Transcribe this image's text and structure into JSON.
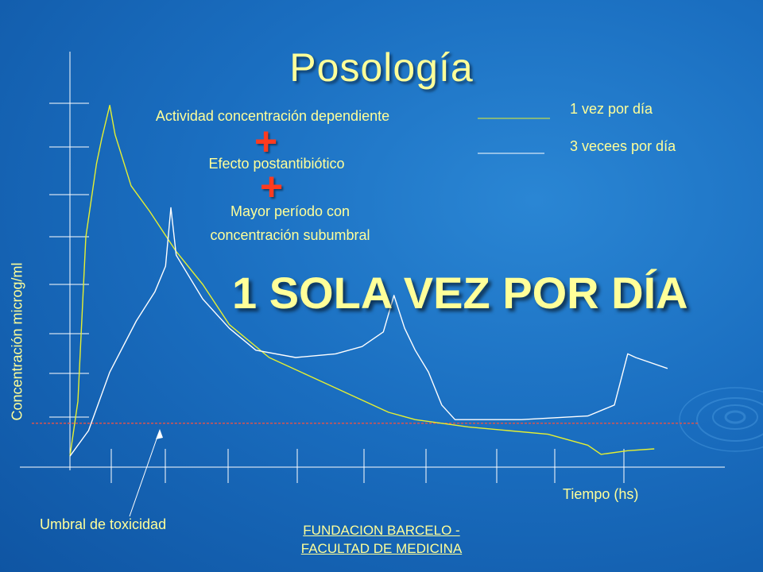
{
  "slide": {
    "title": "Posología",
    "annotations": {
      "actividad": "Actividad concentración dependiente",
      "efecto": "Efecto postantibiótico",
      "mayor_line1": "Mayor período con",
      "mayor_line2": "concentración subumbral",
      "plus": "+"
    },
    "conclusion": "1 SOLA VEZ POR DÍA",
    "footer_line1": "FUNDACION BARCELO -",
    "footer_line2": "FACULTAD DE MEDICINA"
  },
  "colors": {
    "background": "#1a6ec0",
    "text": "#ffff99",
    "plus": "#ff3b1f",
    "threshold": "#d9534f",
    "series_once": "#e6f030",
    "series_three": "#ffffff"
  },
  "chart_data": {
    "type": "line",
    "title": "",
    "xlabel": "Tiempo (hs)",
    "ylabel": "Concentración microg/ml",
    "xlim": [
      0,
      24
    ],
    "ylim": [
      0,
      10
    ],
    "x_ticks_count": 10,
    "y_ticks_count": 9,
    "grid": false,
    "legend": "top-right",
    "threshold": {
      "name": "Umbral de toxicidad",
      "y": 1.2,
      "style": "dashed"
    },
    "series": [
      {
        "name": "1 vez por día",
        "color": "#e6f030",
        "points": [
          [
            0,
            0.3
          ],
          [
            0.3,
            1.8
          ],
          [
            0.6,
            6.3
          ],
          [
            1.0,
            8.3
          ],
          [
            1.2,
            9.0
          ],
          [
            1.5,
            9.9
          ],
          [
            1.7,
            9.1
          ],
          [
            2.3,
            7.7
          ],
          [
            3.0,
            7.0
          ],
          [
            4.0,
            5.9
          ],
          [
            5.0,
            5.0
          ],
          [
            6.0,
            3.9
          ],
          [
            7.5,
            3.0
          ],
          [
            9.0,
            2.5
          ],
          [
            10.5,
            2.0
          ],
          [
            12.0,
            1.5
          ],
          [
            13.0,
            1.3
          ],
          [
            15.0,
            1.1
          ],
          [
            16.5,
            1.0
          ],
          [
            18.0,
            0.9
          ],
          [
            19.5,
            0.6
          ],
          [
            20.0,
            0.35
          ],
          [
            21.0,
            0.45
          ],
          [
            22.0,
            0.5
          ]
        ]
      },
      {
        "name": "3 vecees por día",
        "color": "#ffffff",
        "points": [
          [
            0,
            0.3
          ],
          [
            0.7,
            1.0
          ],
          [
            1.5,
            2.6
          ],
          [
            2.5,
            4.0
          ],
          [
            3.2,
            4.8
          ],
          [
            3.6,
            5.5
          ],
          [
            3.8,
            7.1
          ],
          [
            4.0,
            5.8
          ],
          [
            5.0,
            4.6
          ],
          [
            6.0,
            3.8
          ],
          [
            7.0,
            3.2
          ],
          [
            8.5,
            3.0
          ],
          [
            10.0,
            3.1
          ],
          [
            11.0,
            3.3
          ],
          [
            11.8,
            3.7
          ],
          [
            12.2,
            4.7
          ],
          [
            12.6,
            3.8
          ],
          [
            13.0,
            3.2
          ],
          [
            13.5,
            2.6
          ],
          [
            14.0,
            1.7
          ],
          [
            14.5,
            1.3
          ],
          [
            17.0,
            1.3
          ],
          [
            19.5,
            1.4
          ],
          [
            20.5,
            1.7
          ],
          [
            21.0,
            3.1
          ],
          [
            21.3,
            3.0
          ],
          [
            22.5,
            2.7
          ]
        ]
      }
    ],
    "annotation": "Umbral de toxicidad"
  }
}
